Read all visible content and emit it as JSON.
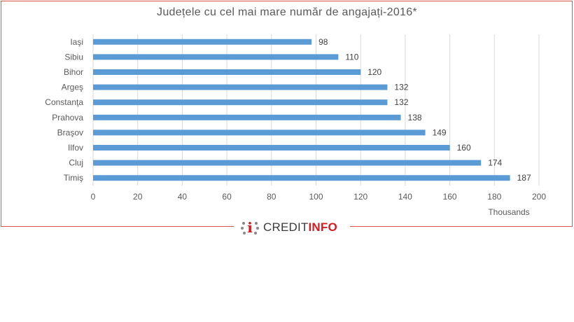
{
  "chart_data": {
    "type": "bar",
    "orientation": "horizontal",
    "title": "Județele cu cel mai mare număr de angajați-2016*",
    "categories": [
      "Iaşi",
      "Sibiu",
      "Bihor",
      "Argeş",
      "Constanţa",
      "Prahova",
      "Braşov",
      "Ilfov",
      "Cluj",
      "Timiş"
    ],
    "values": [
      98,
      110,
      120,
      132,
      132,
      138,
      149,
      160,
      174,
      187
    ],
    "x_ticks": [
      "0",
      "20",
      "40",
      "60",
      "80",
      "100",
      "120",
      "140",
      "160",
      "180",
      "200"
    ],
    "xlim": [
      0,
      200
    ],
    "x_unit_label": "Thousands",
    "grid": "vertical",
    "bar_color": "#5b9bd5",
    "data_labels": true
  },
  "brand": {
    "logo_prefix": "CREDIT",
    "logo_suffix": "INFO",
    "accent_color": "#d71920"
  }
}
